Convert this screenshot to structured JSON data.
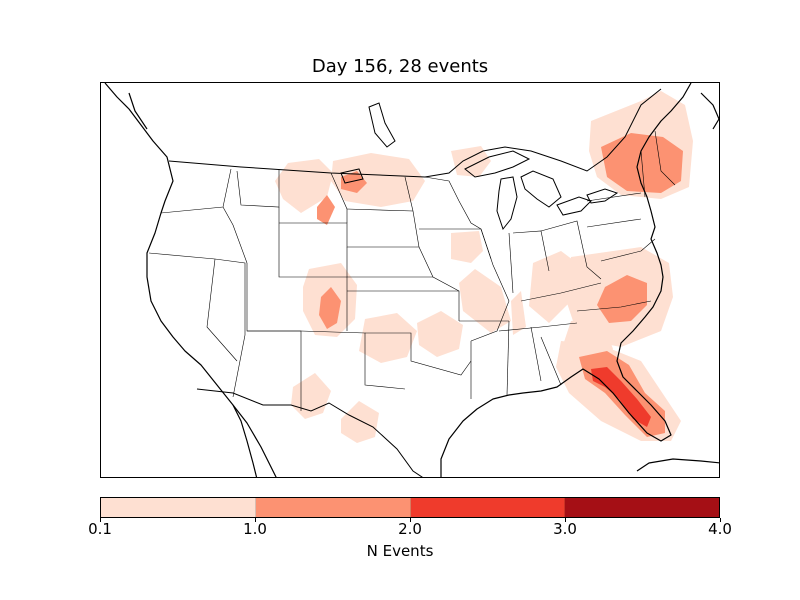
{
  "title": "Day 156, 28 events",
  "colorbar": {
    "label": "N Events",
    "ticks": [
      "0.1",
      "1.0",
      "2.0",
      "3.0",
      "4.0"
    ],
    "bins": [
      {
        "from": 0.1,
        "to": 1.0,
        "color": "#fee0d2"
      },
      {
        "from": 1.0,
        "to": 2.0,
        "color": "#fc9272"
      },
      {
        "from": 2.0,
        "to": 3.0,
        "color": "#ef3b2c"
      },
      {
        "from": 3.0,
        "to": 4.0,
        "color": "#a50f15"
      }
    ]
  },
  "map": {
    "region": "North America (contiguous United States)",
    "features": [
      "coastlines",
      "state-borders",
      "country-borders",
      "lakes"
    ]
  }
}
